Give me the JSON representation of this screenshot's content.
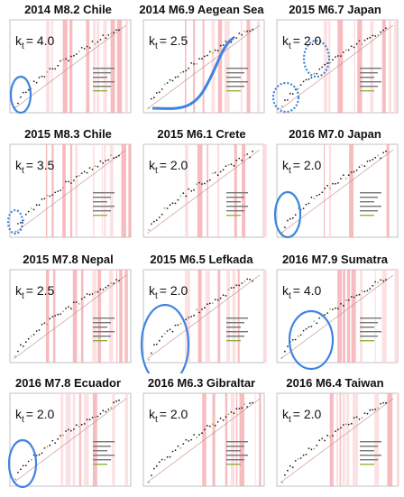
{
  "panels": [
    {
      "title": "2014 M8.2 Chile",
      "kt_label": "k",
      "kt_sub": "t",
      "kt_value": "= 4.0"
    },
    {
      "title": "2014 M6.9 Aegean Sea",
      "kt_label": "k",
      "kt_sub": "t",
      "kt_value": "= 2.5"
    },
    {
      "title": "2015 M6.7 Japan",
      "kt_label": "k",
      "kt_sub": "t",
      "kt_value": "= 2.0"
    },
    {
      "title": "2015 M8.3 Chile",
      "kt_label": "k",
      "kt_sub": "t",
      "kt_value": "= 3.5"
    },
    {
      "title": "2015 M6.1 Crete",
      "kt_label": "k",
      "kt_sub": "t",
      "kt_value": "= 2.0"
    },
    {
      "title": "2016 M7.0 Japan",
      "kt_label": "k",
      "kt_sub": "t",
      "kt_value": "= 2.0"
    },
    {
      "title": "2015 M7.8 Nepal",
      "kt_label": "k",
      "kt_sub": "t",
      "kt_value": "= 2.5"
    },
    {
      "title": "2015 M6.5 Lefkada",
      "kt_label": "k",
      "kt_sub": "t",
      "kt_value": "= 2.0"
    },
    {
      "title": "2016 M7.9 Sumatra",
      "kt_label": "k",
      "kt_sub": "t",
      "kt_value": "= 4.0"
    },
    {
      "title": "2016 M7.8 Ecuador",
      "kt_label": "k",
      "kt_sub": "t",
      "kt_value": "= 2.0"
    },
    {
      "title": "2016 M6.3 Gibraltar",
      "kt_label": "k",
      "kt_sub": "t",
      "kt_value": "= 2.0"
    },
    {
      "title": "2016 M6.4 Taiwan",
      "kt_label": "k",
      "kt_sub": "t",
      "kt_value": "= 2.0"
    }
  ],
  "colors": {
    "band": "#f4a6ab",
    "band_light": "#fbd7da",
    "highlight": "#3f84e0",
    "points": "#222222",
    "accent_green": "#8fb33a",
    "fit_line": "#c98a8a"
  },
  "chart_data": [
    {
      "type": "scatter",
      "title": "2014 M8.2 Chile",
      "annotation": "kt = 4.0"
    },
    {
      "type": "scatter",
      "title": "2014 M6.9 Aegean Sea",
      "annotation": "kt = 2.5"
    },
    {
      "type": "scatter",
      "title": "2015 M6.7 Japan",
      "annotation": "kt = 2.0"
    },
    {
      "type": "scatter",
      "title": "2015 M8.3 Chile",
      "annotation": "kt = 3.5"
    },
    {
      "type": "scatter",
      "title": "2015 M6.1 Crete",
      "annotation": "kt = 2.0"
    },
    {
      "type": "scatter",
      "title": "2016 M7.0 Japan",
      "annotation": "kt = 2.0"
    },
    {
      "type": "scatter",
      "title": "2015 M7.8 Nepal",
      "annotation": "kt = 2.5"
    },
    {
      "type": "scatter",
      "title": "2015 M6.5 Lefkada",
      "annotation": "kt = 2.0"
    },
    {
      "type": "scatter",
      "title": "2016 M7.9 Sumatra",
      "annotation": "kt = 4.0"
    },
    {
      "type": "scatter",
      "title": "2016 M7.8 Ecuador",
      "annotation": "kt = 2.0"
    },
    {
      "type": "scatter",
      "title": "2016 M6.3 Gibraltar",
      "annotation": "kt = 2.0"
    },
    {
      "type": "scatter",
      "title": "2016 M6.4 Taiwan",
      "annotation": "kt = 2.0"
    }
  ]
}
